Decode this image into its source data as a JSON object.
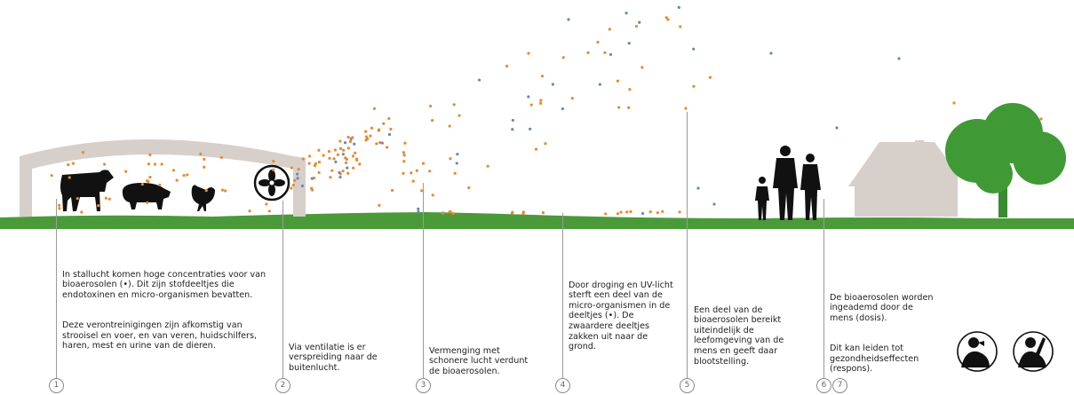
{
  "colors": {
    "ground": "#4a9a3a",
    "tree": "#3f9a35",
    "building": "#d7cfca",
    "orange_particle": "#e8892d",
    "blue_particle": "#6c87b8",
    "silhouette": "#111111"
  },
  "icons": [
    "cow-icon",
    "pig-icon",
    "chicken-icon",
    "fan-icon",
    "family-silhouette-icon",
    "house-icon",
    "tree-icon",
    "coughing-person-icon",
    "sick-person-icon"
  ],
  "steps": [
    {
      "number": "1",
      "paragraphs": [
        "In stallucht komen hoge concentraties voor van bioaerosolen (•). Dit zijn stofdeeltjes die endotoxinen en micro-organismen bevatten.",
        "Deze verontreinigingen zijn afkomstig van strooisel en voer, en van veren, huidschilfers, haren, mest en urine van de dieren."
      ]
    },
    {
      "number": "2",
      "paragraphs": [
        "Via ventilatie is er verspreiding naar de buitenlucht."
      ]
    },
    {
      "number": "3",
      "paragraphs": [
        "Vermenging met schonere lucht verdunt de bioaerosolen."
      ]
    },
    {
      "number": "4",
      "paragraphs": [
        "Door droging en UV-licht sterft een deel van de micro-organismen in de deeltjes (•). De zwaardere deeltjes zakken uit naar de grond."
      ]
    },
    {
      "number": "5",
      "paragraphs": [
        "Een deel van de bioaerosolen bereikt uiteindelijk de leefomgeving van de mens en geeft daar blootstelling."
      ]
    },
    {
      "number": "6",
      "paragraphs": []
    },
    {
      "number": "7",
      "paragraphs": [
        "De bioaerosolen worden ingeademd door de mens (dosis).",
        "Dit kan leiden tot gezondheidseffecten (respons)."
      ]
    }
  ]
}
